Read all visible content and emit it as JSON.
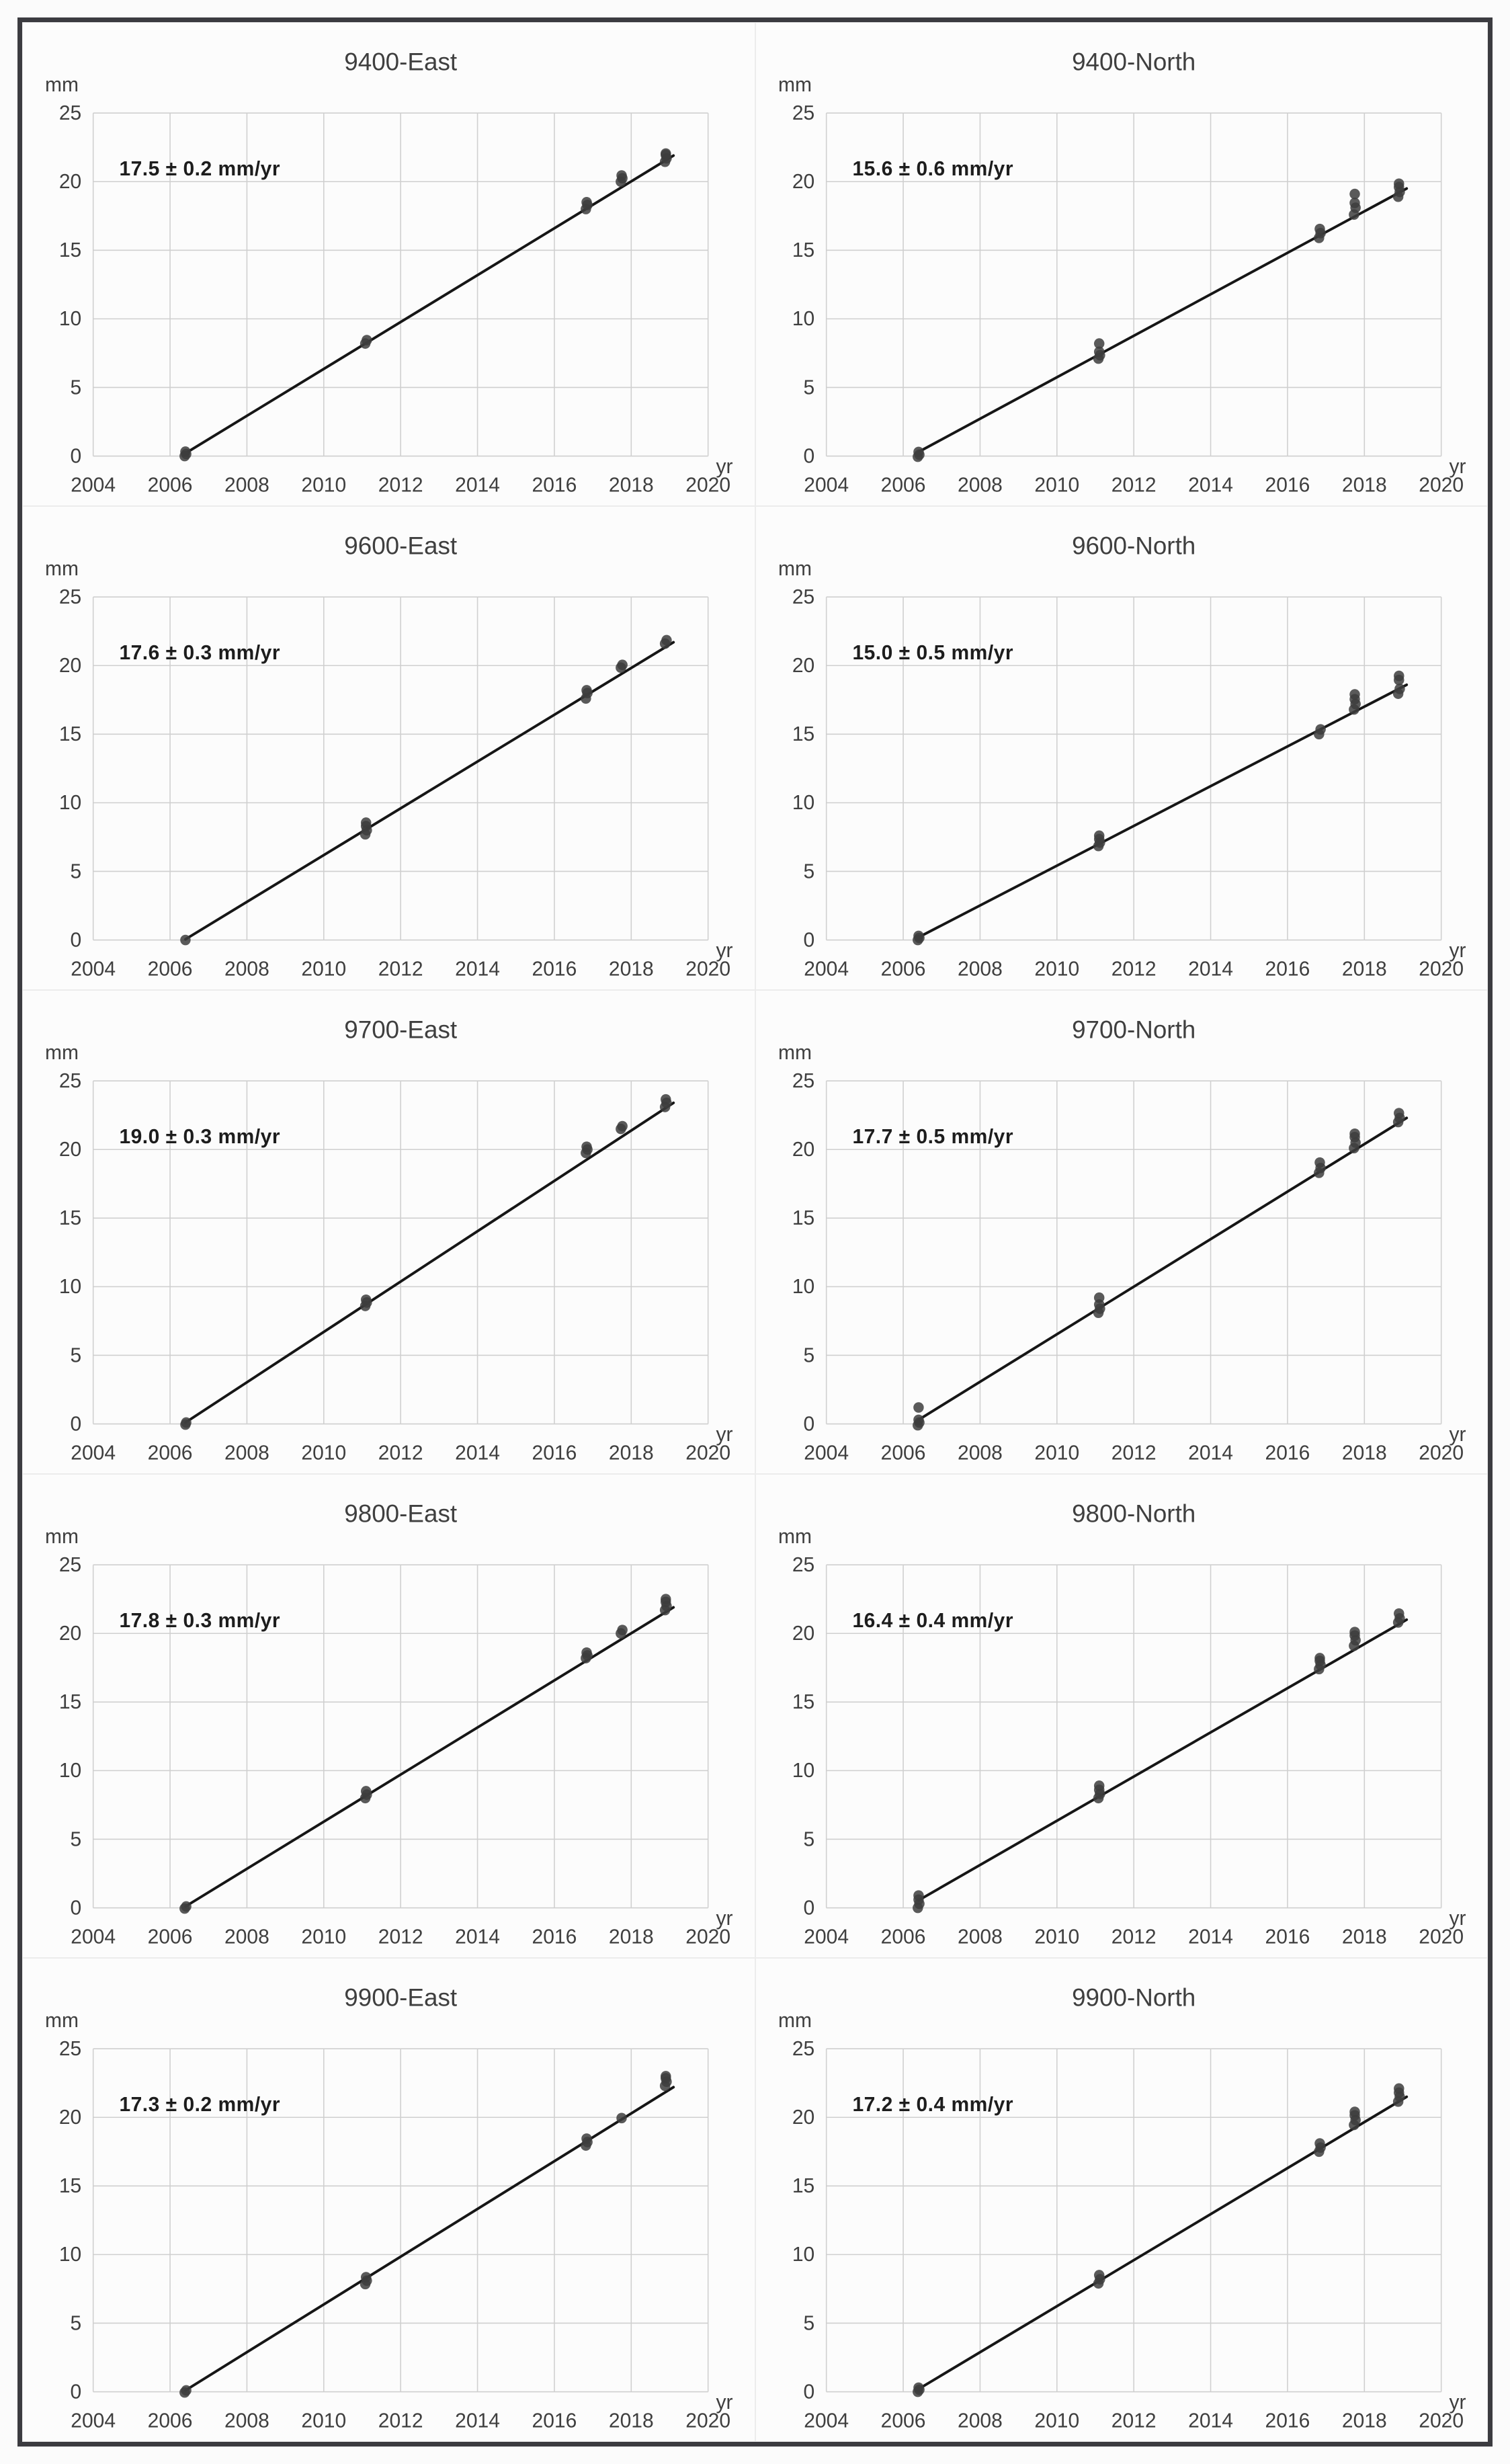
{
  "page": {
    "frame_color": "#3b3b40",
    "background": "#fbfbfb",
    "grid_color": "#cfcfcf",
    "point_color": "#3d3d3d",
    "trend_color": "#161616",
    "text_color": "#3f3f3f"
  },
  "chart_data": {
    "type": "scatter",
    "xlabel": "yr",
    "ylabel": "mm",
    "xlim": [
      2004,
      2020
    ],
    "ylim": [
      0,
      25
    ],
    "xticks": [
      "2004",
      "2006",
      "2008",
      "2010",
      "2012",
      "2014",
      "2016",
      "2018",
      "2020"
    ],
    "yticks": [
      "0",
      "5",
      "10",
      "15",
      "20",
      "25"
    ],
    "grid": true,
    "legend": false,
    "charts": [
      {
        "title": "9400-East",
        "rate_label": "17.5 ± 0.2 mm/yr",
        "trend": {
          "x": [
            2006.4,
            2019.1
          ],
          "y": [
            0.2,
            21.9
          ]
        },
        "points": [
          [
            2006.38,
            0.0
          ],
          [
            2006.42,
            0.15
          ],
          [
            2006.4,
            0.32
          ],
          [
            2011.08,
            8.2
          ],
          [
            2011.12,
            8.45
          ],
          [
            2016.82,
            18.0
          ],
          [
            2016.86,
            18.3
          ],
          [
            2016.84,
            18.5
          ],
          [
            2017.73,
            20.0
          ],
          [
            2017.77,
            20.25
          ],
          [
            2017.75,
            20.45
          ],
          [
            2018.88,
            21.45
          ],
          [
            2018.92,
            21.7
          ],
          [
            2018.9,
            21.95
          ],
          [
            2018.9,
            22.05
          ]
        ]
      },
      {
        "title": "9400-North",
        "rate_label": "15.6 ± 0.6 mm/yr",
        "trend": {
          "x": [
            2006.4,
            2019.1
          ],
          "y": [
            0.3,
            19.5
          ]
        },
        "points": [
          [
            2006.38,
            -0.05
          ],
          [
            2006.42,
            0.1
          ],
          [
            2006.4,
            0.3
          ],
          [
            2011.08,
            7.1
          ],
          [
            2011.12,
            7.35
          ],
          [
            2011.1,
            7.6
          ],
          [
            2011.1,
            8.2
          ],
          [
            2016.82,
            15.9
          ],
          [
            2016.86,
            16.25
          ],
          [
            2016.84,
            16.55
          ],
          [
            2017.73,
            17.6
          ],
          [
            2017.77,
            18.1
          ],
          [
            2017.75,
            18.45
          ],
          [
            2017.75,
            19.1
          ],
          [
            2018.88,
            18.9
          ],
          [
            2018.92,
            19.25
          ],
          [
            2018.9,
            19.6
          ],
          [
            2018.9,
            19.85
          ]
        ]
      },
      {
        "title": "9600-East",
        "rate_label": "17.6 ± 0.3 mm/yr",
        "trend": {
          "x": [
            2006.4,
            2019.1
          ],
          "y": [
            0.05,
            21.7
          ]
        },
        "points": [
          [
            2006.4,
            0.0
          ],
          [
            2011.08,
            7.7
          ],
          [
            2011.12,
            8.0
          ],
          [
            2011.1,
            8.3
          ],
          [
            2011.1,
            8.55
          ],
          [
            2016.82,
            17.6
          ],
          [
            2016.86,
            18.0
          ],
          [
            2016.84,
            18.2
          ],
          [
            2017.73,
            19.85
          ],
          [
            2017.77,
            20.05
          ],
          [
            2018.88,
            21.6
          ],
          [
            2018.92,
            21.85
          ]
        ]
      },
      {
        "title": "9600-North",
        "rate_label": "15.0 ± 0.5 mm/yr",
        "trend": {
          "x": [
            2006.4,
            2019.1
          ],
          "y": [
            0.2,
            18.6
          ]
        },
        "points": [
          [
            2006.38,
            0.0
          ],
          [
            2006.42,
            0.15
          ],
          [
            2006.4,
            0.3
          ],
          [
            2011.08,
            6.85
          ],
          [
            2011.12,
            7.1
          ],
          [
            2011.1,
            7.35
          ],
          [
            2011.1,
            7.6
          ],
          [
            2016.82,
            15.0
          ],
          [
            2016.86,
            15.35
          ],
          [
            2017.73,
            16.8
          ],
          [
            2017.77,
            17.2
          ],
          [
            2017.75,
            17.55
          ],
          [
            2017.75,
            17.9
          ],
          [
            2018.88,
            17.95
          ],
          [
            2018.92,
            18.3
          ],
          [
            2018.9,
            18.95
          ],
          [
            2018.9,
            19.25
          ]
        ]
      },
      {
        "title": "9700-East",
        "rate_label": "19.0 ± 0.3 mm/yr",
        "trend": {
          "x": [
            2006.4,
            2019.1
          ],
          "y": [
            0.1,
            23.4
          ]
        },
        "points": [
          [
            2006.4,
            -0.05
          ],
          [
            2006.42,
            0.1
          ],
          [
            2011.08,
            8.6
          ],
          [
            2011.12,
            8.85
          ],
          [
            2011.1,
            9.05
          ],
          [
            2016.82,
            19.75
          ],
          [
            2016.86,
            20.0
          ],
          [
            2016.84,
            20.2
          ],
          [
            2017.73,
            21.5
          ],
          [
            2017.77,
            21.7
          ],
          [
            2018.88,
            23.1
          ],
          [
            2018.92,
            23.4
          ],
          [
            2018.9,
            23.65
          ]
        ]
      },
      {
        "title": "9700-North",
        "rate_label": "17.7 ± 0.5 mm/yr",
        "trend": {
          "x": [
            2006.4,
            2019.1
          ],
          "y": [
            0.3,
            22.3
          ]
        },
        "points": [
          [
            2006.38,
            -0.1
          ],
          [
            2006.42,
            0.1
          ],
          [
            2006.4,
            0.3
          ],
          [
            2006.4,
            1.2
          ],
          [
            2011.08,
            8.1
          ],
          [
            2011.12,
            8.4
          ],
          [
            2011.1,
            8.7
          ],
          [
            2011.1,
            9.2
          ],
          [
            2016.82,
            18.3
          ],
          [
            2016.86,
            18.65
          ],
          [
            2016.84,
            19.05
          ],
          [
            2017.73,
            20.1
          ],
          [
            2017.77,
            20.5
          ],
          [
            2017.75,
            20.9
          ],
          [
            2017.75,
            21.15
          ],
          [
            2018.88,
            22.0
          ],
          [
            2018.92,
            22.3
          ],
          [
            2018.9,
            22.65
          ]
        ]
      },
      {
        "title": "9800-East",
        "rate_label": "17.8 ± 0.3 mm/yr",
        "trend": {
          "x": [
            2006.4,
            2019.1
          ],
          "y": [
            0.1,
            21.9
          ]
        },
        "points": [
          [
            2006.38,
            -0.05
          ],
          [
            2006.42,
            0.1
          ],
          [
            2011.08,
            8.0
          ],
          [
            2011.12,
            8.25
          ],
          [
            2011.1,
            8.5
          ],
          [
            2016.82,
            18.2
          ],
          [
            2016.86,
            18.4
          ],
          [
            2016.84,
            18.6
          ],
          [
            2017.73,
            20.0
          ],
          [
            2017.77,
            20.25
          ],
          [
            2018.88,
            21.7
          ],
          [
            2018.92,
            22.0
          ],
          [
            2018.9,
            22.3
          ],
          [
            2018.9,
            22.5
          ]
        ]
      },
      {
        "title": "9800-North",
        "rate_label": "16.4 ± 0.4 mm/yr",
        "trend": {
          "x": [
            2006.4,
            2019.1
          ],
          "y": [
            0.55,
            21.0
          ]
        },
        "points": [
          [
            2006.38,
            0.0
          ],
          [
            2006.42,
            0.3
          ],
          [
            2006.4,
            0.6
          ],
          [
            2006.4,
            0.9
          ],
          [
            2011.08,
            8.0
          ],
          [
            2011.12,
            8.3
          ],
          [
            2011.1,
            8.6
          ],
          [
            2011.1,
            8.9
          ],
          [
            2016.82,
            17.4
          ],
          [
            2016.86,
            17.7
          ],
          [
            2016.84,
            18.0
          ],
          [
            2016.84,
            18.2
          ],
          [
            2017.73,
            19.1
          ],
          [
            2017.77,
            19.5
          ],
          [
            2017.75,
            19.85
          ],
          [
            2017.75,
            20.1
          ],
          [
            2018.88,
            20.8
          ],
          [
            2018.92,
            21.1
          ],
          [
            2018.9,
            21.45
          ]
        ]
      },
      {
        "title": "9900-East",
        "rate_label": "17.3 ± 0.2 mm/yr",
        "trend": {
          "x": [
            2006.4,
            2019.1
          ],
          "y": [
            0.1,
            22.2
          ]
        },
        "points": [
          [
            2006.38,
            -0.05
          ],
          [
            2006.42,
            0.1
          ],
          [
            2011.08,
            7.85
          ],
          [
            2011.12,
            8.1
          ],
          [
            2011.1,
            8.35
          ],
          [
            2016.82,
            17.95
          ],
          [
            2016.86,
            18.2
          ],
          [
            2016.84,
            18.45
          ],
          [
            2017.75,
            19.95
          ],
          [
            2018.88,
            22.3
          ],
          [
            2018.92,
            22.6
          ],
          [
            2018.9,
            22.85
          ],
          [
            2018.9,
            23.0
          ]
        ]
      },
      {
        "title": "9900-North",
        "rate_label": "17.2 ± 0.4 mm/yr",
        "trend": {
          "x": [
            2006.4,
            2019.1
          ],
          "y": [
            0.2,
            21.5
          ]
        },
        "points": [
          [
            2006.38,
            0.0
          ],
          [
            2006.42,
            0.15
          ],
          [
            2006.4,
            0.3
          ],
          [
            2011.08,
            7.9
          ],
          [
            2011.12,
            8.2
          ],
          [
            2011.1,
            8.5
          ],
          [
            2016.82,
            17.5
          ],
          [
            2016.86,
            17.8
          ],
          [
            2016.84,
            18.1
          ],
          [
            2017.73,
            19.45
          ],
          [
            2017.77,
            19.8
          ],
          [
            2017.75,
            20.15
          ],
          [
            2017.75,
            20.4
          ],
          [
            2018.88,
            21.15
          ],
          [
            2018.92,
            21.5
          ],
          [
            2018.9,
            21.8
          ],
          [
            2018.9,
            22.1
          ]
        ]
      }
    ]
  }
}
